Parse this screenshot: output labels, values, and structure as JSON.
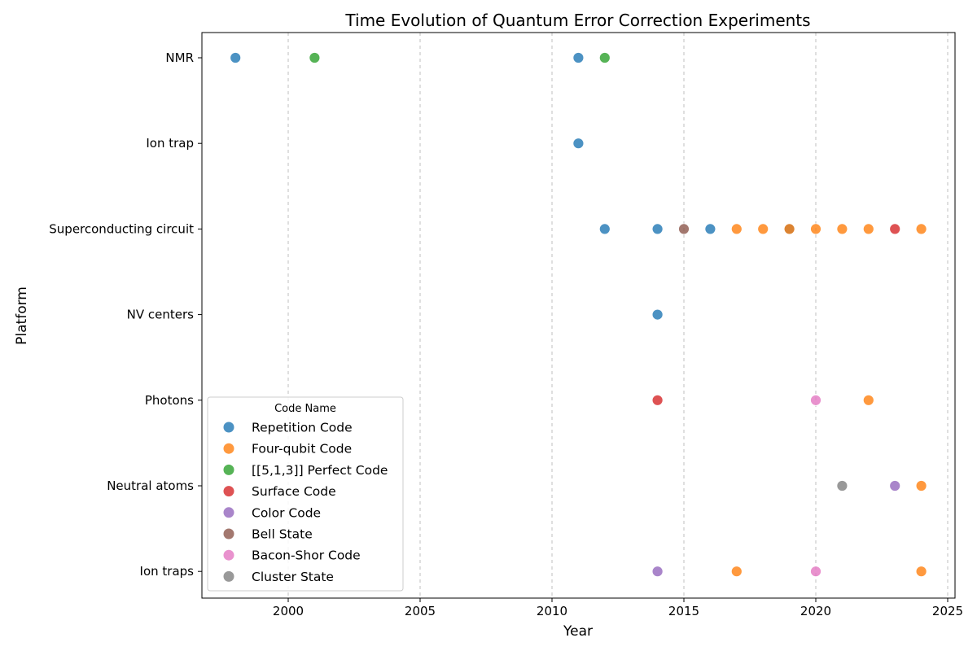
{
  "chart_data": {
    "type": "scatter",
    "title": "Time Evolution of Quantum Error Correction Experiments",
    "xlabel": "Year",
    "ylabel": "Platform",
    "xlim": [
      1996.7,
      2025.3
    ],
    "xticks": [
      2000,
      2005,
      2010,
      2015,
      2020,
      2025
    ],
    "grid": "x-dashed",
    "categories": [
      "NMR",
      "Ion trap",
      "Superconducting circuit",
      "NV centers",
      "Photons",
      "Neutral atoms",
      "Ion traps"
    ],
    "legend": {
      "title": "Code Name",
      "placement": "lower-left"
    },
    "series": [
      {
        "name": "Repetition Code",
        "color": "#1f77b4",
        "points": [
          {
            "x": 1998,
            "y": "NMR"
          },
          {
            "x": 2011,
            "y": "NMR"
          },
          {
            "x": 2011,
            "y": "Ion trap"
          },
          {
            "x": 2012,
            "y": "Superconducting circuit"
          },
          {
            "x": 2014,
            "y": "Superconducting circuit"
          },
          {
            "x": 2016,
            "y": "Superconducting circuit"
          },
          {
            "x": 2019,
            "y": "Superconducting circuit"
          },
          {
            "x": 2014,
            "y": "NV centers"
          }
        ]
      },
      {
        "name": "Four-qubit Code",
        "color": "#ff7f0e",
        "points": [
          {
            "x": 2017,
            "y": "Superconducting circuit"
          },
          {
            "x": 2018,
            "y": "Superconducting circuit"
          },
          {
            "x": 2019,
            "y": "Superconducting circuit"
          },
          {
            "x": 2020,
            "y": "Superconducting circuit"
          },
          {
            "x": 2021,
            "y": "Superconducting circuit"
          },
          {
            "x": 2022,
            "y": "Superconducting circuit"
          },
          {
            "x": 2024,
            "y": "Superconducting circuit"
          },
          {
            "x": 2022,
            "y": "Photons"
          },
          {
            "x": 2024,
            "y": "Neutral atoms"
          },
          {
            "x": 2017,
            "y": "Ion traps"
          },
          {
            "x": 2024,
            "y": "Ion traps"
          }
        ]
      },
      {
        "name": "[[5,1,3]] Perfect Code",
        "color": "#2ca02c",
        "points": [
          {
            "x": 2001,
            "y": "NMR"
          },
          {
            "x": 2012,
            "y": "NMR"
          }
        ]
      },
      {
        "name": "Surface Code",
        "color": "#d62728",
        "points": [
          {
            "x": 2014,
            "y": "Photons"
          },
          {
            "x": 2023,
            "y": "Superconducting circuit"
          }
        ]
      },
      {
        "name": "Color Code",
        "color": "#9467bd",
        "points": [
          {
            "x": 2014,
            "y": "Ion traps"
          },
          {
            "x": 2023,
            "y": "Neutral atoms"
          }
        ]
      },
      {
        "name": "Bell State",
        "color": "#8c564b",
        "points": [
          {
            "x": 2015,
            "y": "Superconducting circuit"
          }
        ]
      },
      {
        "name": "Bacon-Shor Code",
        "color": "#e377c2",
        "points": [
          {
            "x": 2020,
            "y": "Photons"
          },
          {
            "x": 2020,
            "y": "Ion traps"
          }
        ]
      },
      {
        "name": "Cluster State",
        "color": "#7f7f7f",
        "points": [
          {
            "x": 2021,
            "y": "Neutral atoms"
          }
        ]
      }
    ]
  }
}
